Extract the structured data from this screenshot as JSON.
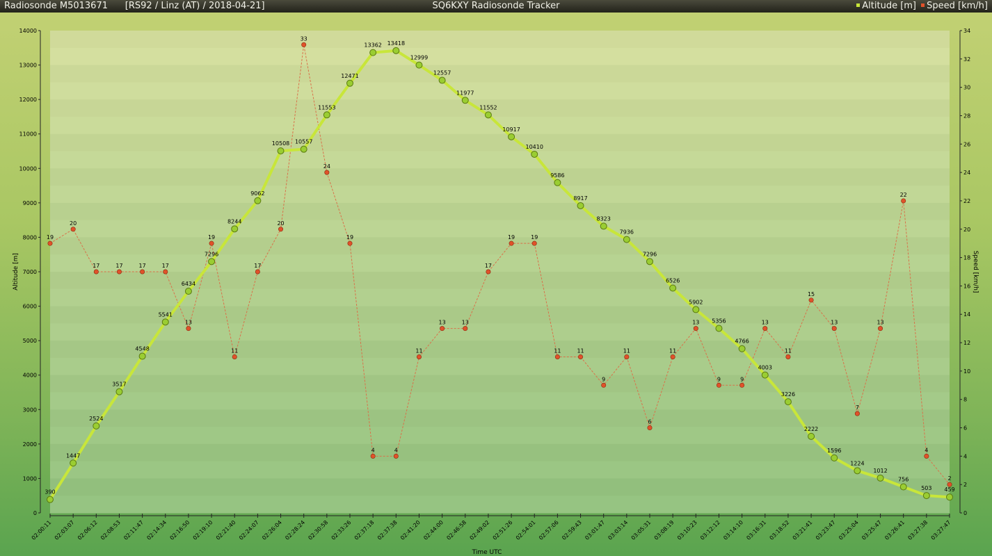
{
  "header": {
    "sonde": "Radiosonde M5013671",
    "info": "[RS92 / Linz (AT) / 2018-04-21]",
    "title": "SQ6KXY Radiosonde Tracker"
  },
  "colors": {
    "altitude": "#c8e63a",
    "altitude_marker": "#9acd32",
    "speed": "#e0522a",
    "speed_line": "#d9724a"
  },
  "chart_data": {
    "type": "line",
    "title": "SQ6KXY Radiosonde Tracker",
    "xlabel": "Time UTC",
    "ylabel": "Altitude [m]",
    "y2label": "Speed [km/h]",
    "ylim": [
      0,
      14000
    ],
    "y2lim": [
      0,
      34
    ],
    "yticks": [
      0,
      1000,
      2000,
      3000,
      4000,
      5000,
      6000,
      7000,
      8000,
      9000,
      10000,
      11000,
      12000,
      13000,
      14000
    ],
    "y2ticks": [
      0,
      2,
      4,
      6,
      8,
      10,
      12,
      14,
      16,
      18,
      20,
      22,
      24,
      26,
      28,
      30,
      32,
      34
    ],
    "legend": "top-right",
    "x": [
      "02:00:11",
      "02:03:07",
      "02:06:12",
      "02:08:53",
      "02:11:47",
      "02:14:34",
      "02:16:50",
      "02:19:10",
      "02:21:40",
      "02:24:07",
      "02:26:04",
      "02:28:24",
      "02:30:58",
      "02:33:26",
      "02:37:18",
      "02:37:38",
      "02:41:20",
      "02:44:00",
      "02:46:58",
      "02:49:02",
      "02:51:26",
      "02:54:01",
      "02:57:06",
      "02:59:43",
      "03:01:47",
      "03:03:14",
      "03:05:31",
      "03:08:19",
      "03:10:23",
      "03:12:12",
      "03:14:10",
      "03:16:31",
      "03:18:52",
      "03:21:41",
      "03:23:47",
      "03:25:04",
      "03:25:47",
      "03:26:41",
      "03:27:38",
      "03:27:47"
    ],
    "series": [
      {
        "name": "Altitude [m]",
        "axis": "left",
        "values": [
          390,
          1447,
          2524,
          3517,
          4548,
          5541,
          6434,
          7296,
          8244,
          9062,
          10508,
          10557,
          11553,
          12471,
          13362,
          13418,
          12999,
          12557,
          11977,
          11552,
          10917,
          10410,
          9586,
          8917,
          8323,
          7936,
          7296,
          6526,
          5902,
          5356,
          4766,
          4003,
          3226,
          2222,
          1596,
          1224,
          1012,
          756,
          503,
          459
        ]
      },
      {
        "name": "Speed [km/h]",
        "axis": "right",
        "values": [
          19,
          20,
          17,
          17,
          17,
          17,
          13,
          19,
          11,
          17,
          20,
          33,
          24,
          19,
          4,
          4,
          11,
          13,
          13,
          17,
          19,
          19,
          11,
          11,
          9,
          11,
          6,
          11,
          13,
          9,
          9,
          13,
          11,
          15,
          13,
          7,
          13,
          22,
          4,
          2
        ]
      }
    ]
  }
}
